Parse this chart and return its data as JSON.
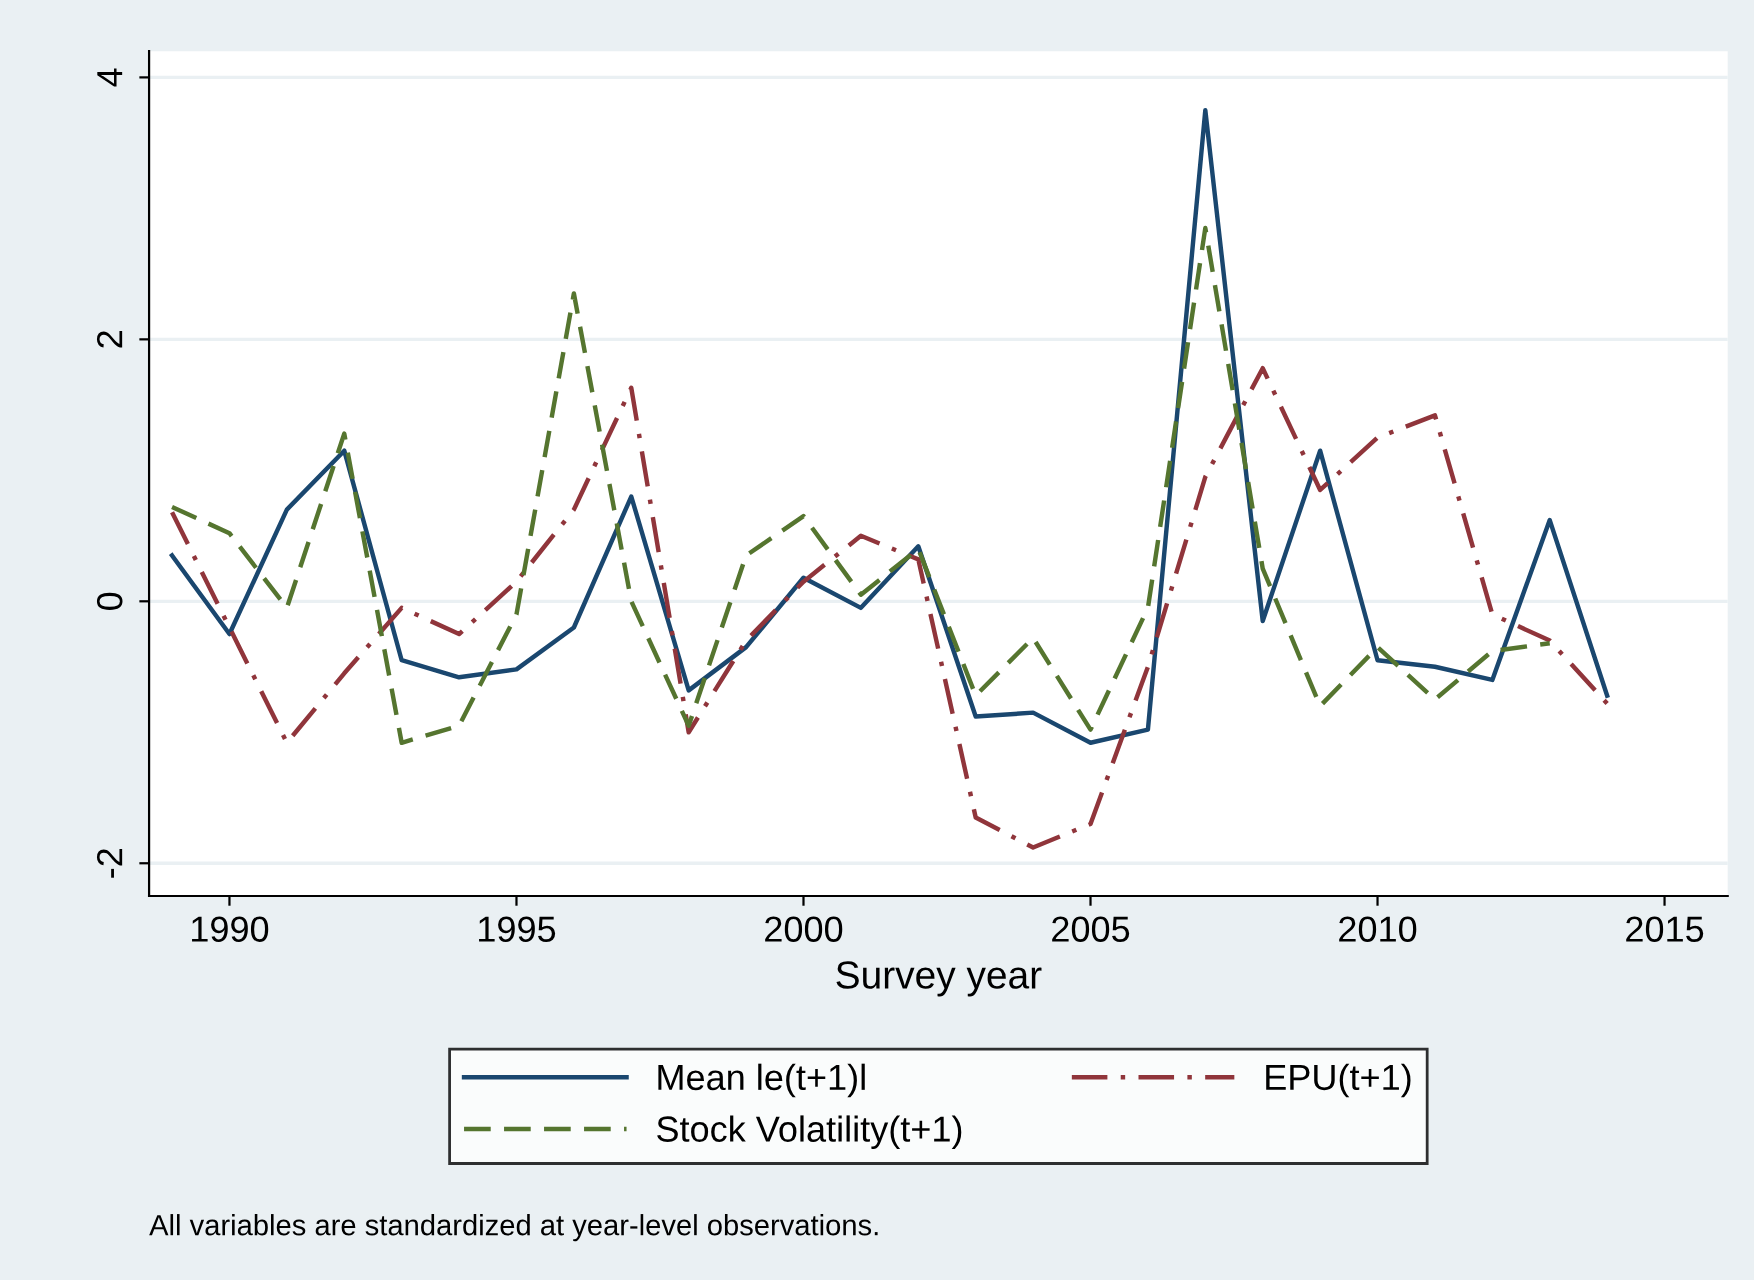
{
  "chart_data": {
    "type": "line",
    "xlabel": "Survey year",
    "x": [
      1989,
      1990,
      1991,
      1992,
      1993,
      1994,
      1995,
      1996,
      1997,
      1998,
      1999,
      2000,
      2001,
      2002,
      2003,
      2004,
      2005,
      2006,
      2007,
      2008,
      2009,
      2010,
      2011,
      2012,
      2013,
      2014
    ],
    "series": [
      {
        "name": "Mean le(t+1)l",
        "color": "#1a476f",
        "line_style": "solid",
        "values": [
          0.35,
          -0.25,
          0.7,
          1.15,
          -0.45,
          -0.58,
          -0.52,
          -0.2,
          0.8,
          -0.68,
          -0.35,
          0.18,
          -0.05,
          0.42,
          -0.88,
          -0.85,
          -1.08,
          -0.98,
          3.75,
          -0.15,
          1.15,
          -0.45,
          -0.5,
          -0.6,
          0.62,
          -0.72
        ]
      },
      {
        "name": "EPU(t+1)",
        "color": "#90353b",
        "line_style": "dashdot",
        "values": [
          0.68,
          -0.2,
          -1.08,
          -0.55,
          -0.05,
          -0.25,
          0.15,
          0.7,
          1.63,
          -1.0,
          -0.3,
          0.15,
          0.5,
          0.32,
          -1.65,
          -1.88,
          -1.7,
          -0.5,
          0.95,
          1.78,
          0.85,
          1.25,
          1.42,
          -0.1,
          -0.3,
          -0.78
        ]
      },
      {
        "name": "Stock Volatility(t+1)",
        "color": "#55752f",
        "line_style": "dashed",
        "values": [
          0.72,
          0.52,
          -0.05,
          1.28,
          -1.08,
          -0.95,
          -0.1,
          2.35,
          0.0,
          -0.95,
          0.35,
          0.65,
          0.05,
          0.4,
          -0.72,
          -0.28,
          -0.98,
          -0.05,
          2.85,
          0.25,
          -0.8,
          -0.35,
          -0.75,
          -0.38,
          -0.32,
          null
        ]
      }
    ],
    "xlim": [
      1988.6,
      2016.1
    ],
    "xticks": [
      1990,
      1995,
      2000,
      2005,
      2010,
      2015
    ],
    "ylim": [
      -2.25,
      4.2
    ],
    "yticks": [
      -2,
      0,
      2,
      4
    ],
    "grid": "y",
    "legend": "bottom",
    "marker": "none",
    "annotations": [
      "All variables are standardized at year-level observations."
    ]
  }
}
